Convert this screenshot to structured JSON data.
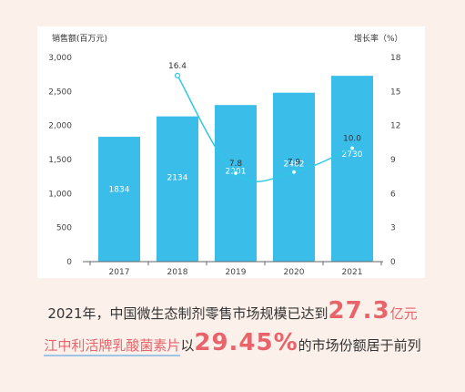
{
  "chart_data": {
    "type": "bar+line",
    "categories": [
      "2017",
      "2018",
      "2019",
      "2020",
      "2021"
    ],
    "series": [
      {
        "values": [
          1834,
          2134,
          2301,
          2482,
          2730
        ],
        "axis": "left",
        "kind": "bar",
        "color": "#3bbde9"
      },
      {
        "values": [
          null,
          16.4,
          7.8,
          7.9,
          10.0
        ],
        "axis": "right",
        "kind": "line",
        "color": "#2ec8e6"
      }
    ],
    "bar_labels": [
      "1834",
      "2134",
      "2301",
      "2482",
      "2730"
    ],
    "line_labels": [
      "",
      "16.4",
      "7.8",
      "7.9",
      "10.0"
    ],
    "ylabel_left": "销售额(百万元)",
    "ylabel_right": "增长率（%）",
    "ylim_left": [
      0,
      3000
    ],
    "yticks_left": [
      "0",
      "500",
      "1,000",
      "1,500",
      "2,000",
      "2,500",
      "3,000"
    ],
    "ylim_right": [
      0,
      18
    ],
    "yticks_right": [
      "0",
      "3",
      "6",
      "9",
      "12",
      "15",
      "18"
    ],
    "grid": false
  },
  "caption": {
    "line1_prefix": "2021年，中国微生态制剂零售市场规模已达到",
    "line1_number": "27.3",
    "line1_suffix": "亿元",
    "line2_brand": "江中利活牌乳酸菌素片",
    "line2_mid": "以",
    "line2_number": "29.45%",
    "line2_suffix": "的市场份额居于前列"
  }
}
